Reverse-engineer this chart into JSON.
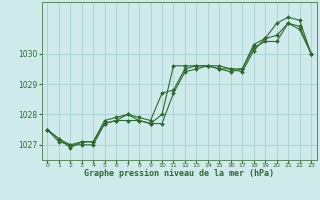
{
  "title": "Graphe pression niveau de la mer (hPa)",
  "bg_color": "#ceeaea",
  "grid_color": "#aad4d4",
  "line_color": "#2d6a2d",
  "marker_color": "#2d6a2d",
  "xlim": [
    -0.5,
    23.5
  ],
  "ylim": [
    1026.5,
    1031.7
  ],
  "yticks": [
    1027,
    1028,
    1029,
    1030
  ],
  "xticks": [
    0,
    1,
    2,
    3,
    4,
    5,
    6,
    7,
    8,
    9,
    10,
    11,
    12,
    13,
    14,
    15,
    16,
    17,
    18,
    19,
    20,
    21,
    22,
    23
  ],
  "series": [
    [
      1027.5,
      1027.2,
      1026.9,
      1027.1,
      1027.1,
      1027.7,
      1027.8,
      1027.8,
      1027.8,
      1027.7,
      1027.7,
      1028.7,
      1029.4,
      1029.5,
      1029.6,
      1029.5,
      1029.4,
      1029.5,
      1030.2,
      1030.4,
      1030.4,
      1031.0,
      1030.8,
      1030.0
    ],
    [
      1027.5,
      1027.1,
      1027.0,
      1027.0,
      1027.0,
      1027.7,
      1027.8,
      1028.0,
      1027.8,
      1027.7,
      1028.0,
      1029.6,
      1029.6,
      1029.6,
      1029.6,
      1029.6,
      1029.5,
      1029.5,
      1030.3,
      1030.5,
      1031.0,
      1031.2,
      1031.1,
      1030.0
    ],
    [
      1027.5,
      1027.2,
      1027.0,
      1027.1,
      1027.1,
      1027.8,
      1027.9,
      1028.0,
      1027.9,
      1027.8,
      1028.7,
      1028.8,
      1029.5,
      1029.6,
      1029.6,
      1029.5,
      1029.5,
      1029.4,
      1030.1,
      1030.5,
      1030.6,
      1031.0,
      1030.9,
      1030.0
    ]
  ]
}
